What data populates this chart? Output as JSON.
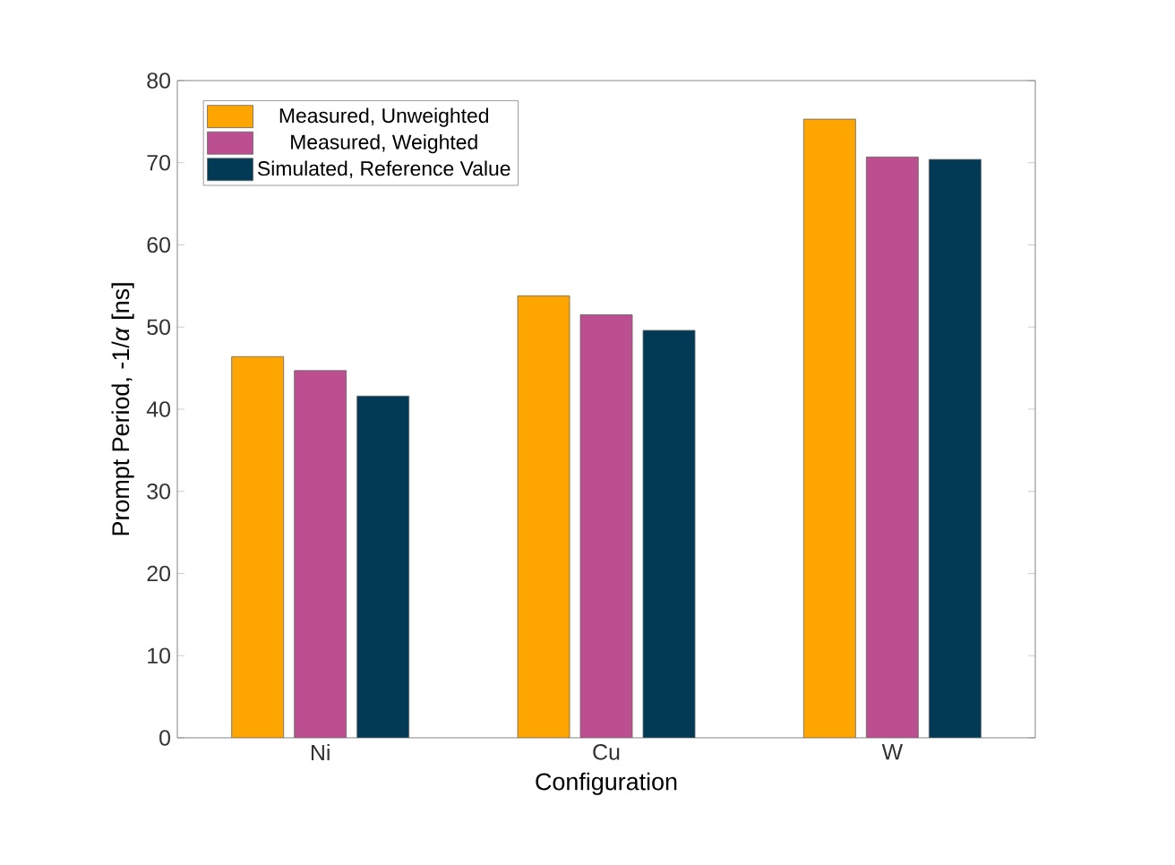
{
  "chart_data": {
    "type": "bar",
    "xlabel": "Configuration",
    "ylabel": "Prompt Period, -1/*α* [ns]",
    "categories": [
      "Ni",
      "Cu",
      "W"
    ],
    "series": [
      {
        "name": "Measured, Unweighted",
        "color": "#ffa500",
        "values": [
          46.4,
          53.8,
          75.3
        ]
      },
      {
        "name": "Measured, Weighted",
        "color": "#bc4f8f",
        "values": [
          44.7,
          51.5,
          70.7
        ]
      },
      {
        "name": "Simulated, Reference Value",
        "color": "#023a55",
        "values": [
          41.6,
          49.6,
          70.4
        ]
      }
    ],
    "ylim": [
      0,
      80
    ],
    "yticks": [
      0,
      10,
      20,
      30,
      40,
      50,
      60,
      70,
      80
    ],
    "grid": false,
    "legend": "top left"
  }
}
